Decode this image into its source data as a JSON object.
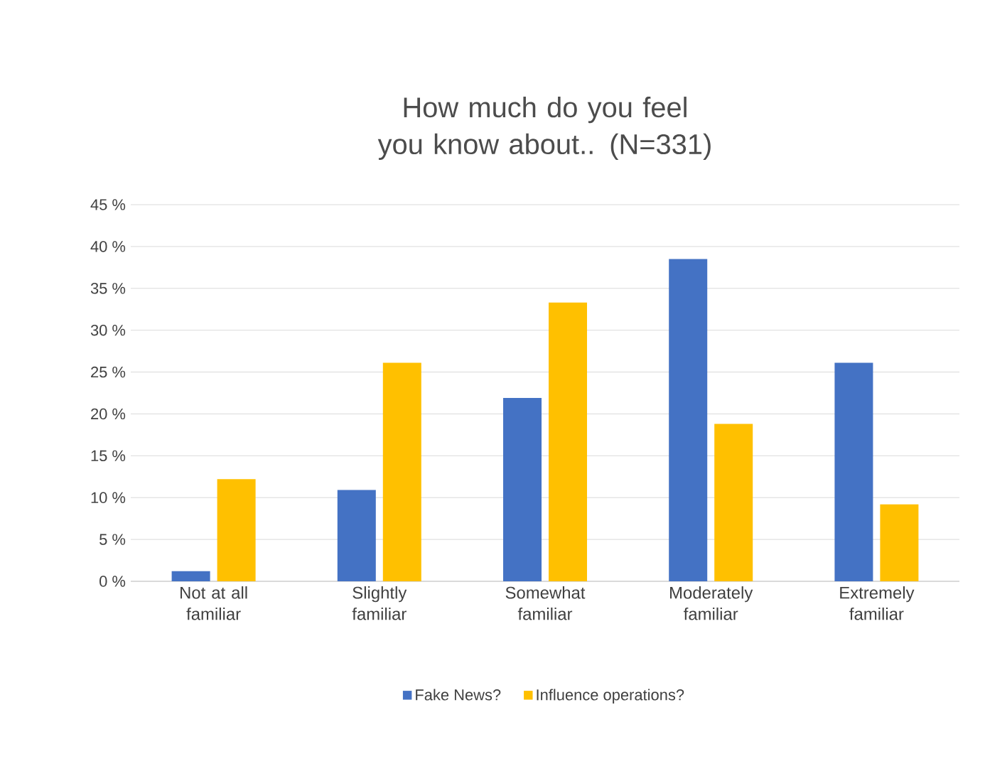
{
  "chart_data": {
    "type": "bar",
    "title": "How much do you feel you know about.. (N=331)",
    "categories": [
      "Not at all familiar",
      "Slightly familiar",
      "Somewhat familiar",
      "Moderately familiar",
      "Extremely familiar"
    ],
    "series": [
      {
        "name": "Fake News?",
        "color": "#4472c4",
        "values": [
          1.2,
          10.9,
          21.9,
          38.5,
          26.1
        ]
      },
      {
        "name": "Influence operations?",
        "color": "#ffc000",
        "values": [
          12.2,
          26.1,
          33.3,
          18.8,
          9.2
        ]
      }
    ],
    "ylim": [
      0,
      45
    ],
    "yticks": [
      {
        "value": 0,
        "label": "0 %"
      },
      {
        "value": 5,
        "label": "5 %"
      },
      {
        "value": 10,
        "label": "10 %"
      },
      {
        "value": 15,
        "label": "15 %"
      },
      {
        "value": 20,
        "label": "20 %"
      },
      {
        "value": 25,
        "label": "25 %"
      },
      {
        "value": 30,
        "label": "30 %"
      },
      {
        "value": 35,
        "label": "35 %"
      },
      {
        "value": 40,
        "label": "40 %"
      },
      {
        "value": 45,
        "label": "45 %"
      }
    ],
    "grid": "y",
    "legend": "bottom"
  }
}
